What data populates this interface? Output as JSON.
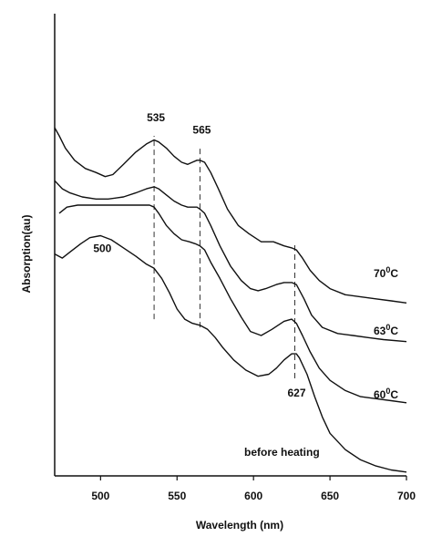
{
  "chart_data": {
    "type": "line",
    "xlabel": "Wavelength (nm)",
    "ylabel": "Absorption(au)",
    "xlim": [
      470,
      700
    ],
    "x_ticks": [
      500,
      550,
      600,
      650,
      700
    ],
    "y_ticks_shown": false,
    "grid": false,
    "legend": "none (curves labelled directly at right end)",
    "series": [
      {
        "name": "70⁰C",
        "label_parts": [
          "70",
          "0",
          "C"
        ],
        "line_color": "#111111",
        "x": [
          470,
          473,
          477,
          483,
          490,
          497,
          503,
          508,
          515,
          523,
          530,
          535,
          538,
          543,
          548,
          553,
          557,
          560,
          563,
          565,
          568,
          572,
          577,
          583,
          590,
          597,
          605,
          613,
          620,
          625,
          628,
          632,
          637,
          643,
          650,
          660,
          670,
          680,
          690,
          700
        ],
        "y": [
          0.85,
          0.83,
          0.8,
          0.77,
          0.75,
          0.74,
          0.73,
          0.735,
          0.76,
          0.79,
          0.81,
          0.82,
          0.815,
          0.8,
          0.78,
          0.765,
          0.76,
          0.765,
          0.77,
          0.77,
          0.765,
          0.74,
          0.7,
          0.65,
          0.61,
          0.59,
          0.57,
          0.57,
          0.56,
          0.555,
          0.55,
          0.53,
          0.5,
          0.475,
          0.455,
          0.44,
          0.435,
          0.43,
          0.425,
          0.42
        ]
      },
      {
        "name": "63⁰C",
        "label_parts": [
          "63",
          "0",
          "C"
        ],
        "line_color": "#111111",
        "x": [
          470,
          475,
          480,
          488,
          497,
          505,
          515,
          523,
          530,
          535,
          538,
          543,
          548,
          553,
          557,
          561,
          563,
          565,
          568,
          572,
          578,
          585,
          592,
          598,
          603,
          608,
          615,
          620,
          625,
          628,
          633,
          638,
          645,
          655,
          665,
          675,
          685,
          700
        ],
        "y": [
          0.72,
          0.7,
          0.69,
          0.68,
          0.675,
          0.675,
          0.68,
          0.69,
          0.7,
          0.705,
          0.7,
          0.685,
          0.67,
          0.66,
          0.655,
          0.655,
          0.655,
          0.65,
          0.64,
          0.61,
          0.56,
          0.51,
          0.475,
          0.455,
          0.45,
          0.455,
          0.465,
          0.47,
          0.47,
          0.465,
          0.43,
          0.39,
          0.36,
          0.345,
          0.34,
          0.335,
          0.33,
          0.325
        ]
      },
      {
        "name": "60⁰C",
        "label_parts": [
          "60",
          "0",
          "C"
        ],
        "line_color": "#111111",
        "x": [
          473,
          478,
          485,
          495,
          505,
          515,
          525,
          532,
          535,
          538,
          543,
          548,
          553,
          558,
          562,
          565,
          568,
          572,
          578,
          585,
          592,
          598,
          605,
          612,
          620,
          625,
          628,
          632,
          637,
          643,
          650,
          660,
          670,
          680,
          690,
          700
        ],
        "y": [
          0.64,
          0.655,
          0.66,
          0.66,
          0.66,
          0.66,
          0.66,
          0.66,
          0.655,
          0.64,
          0.61,
          0.59,
          0.575,
          0.57,
          0.565,
          0.56,
          0.55,
          0.52,
          0.48,
          0.43,
          0.385,
          0.35,
          0.34,
          0.355,
          0.375,
          0.38,
          0.37,
          0.34,
          0.3,
          0.26,
          0.23,
          0.205,
          0.19,
          0.185,
          0.18,
          0.175
        ]
      },
      {
        "name": "before heating",
        "line_color": "#111111",
        "x": [
          470,
          475,
          480,
          487,
          493,
          500,
          507,
          515,
          523,
          530,
          535,
          540,
          545,
          550,
          555,
          560,
          565,
          570,
          575,
          580,
          587,
          595,
          603,
          610,
          615,
          620,
          625,
          628,
          630,
          635,
          640,
          645,
          650,
          660,
          670,
          680,
          690,
          700
        ],
        "y": [
          0.54,
          0.53,
          0.545,
          0.565,
          0.58,
          0.585,
          0.575,
          0.555,
          0.535,
          0.515,
          0.505,
          0.48,
          0.445,
          0.405,
          0.38,
          0.37,
          0.365,
          0.355,
          0.335,
          0.31,
          0.28,
          0.255,
          0.24,
          0.245,
          0.26,
          0.28,
          0.295,
          0.295,
          0.285,
          0.245,
          0.19,
          0.14,
          0.1,
          0.06,
          0.035,
          0.02,
          0.01,
          0.005
        ]
      }
    ],
    "reference_lines": [
      {
        "x": 535,
        "label": "535",
        "line_style": "dashed",
        "y_from": 0.38,
        "y_to": 0.83
      },
      {
        "x": 565,
        "label": "565",
        "line_style": "dashed",
        "y_from": 0.36,
        "y_to": 0.8
      },
      {
        "x": 627,
        "label": "627",
        "line_style": "dashed",
        "y_from": 0.235,
        "y_to": 0.57
      }
    ],
    "annotations": [
      {
        "text": "500",
        "x": 500,
        "y": 0.585
      }
    ]
  }
}
